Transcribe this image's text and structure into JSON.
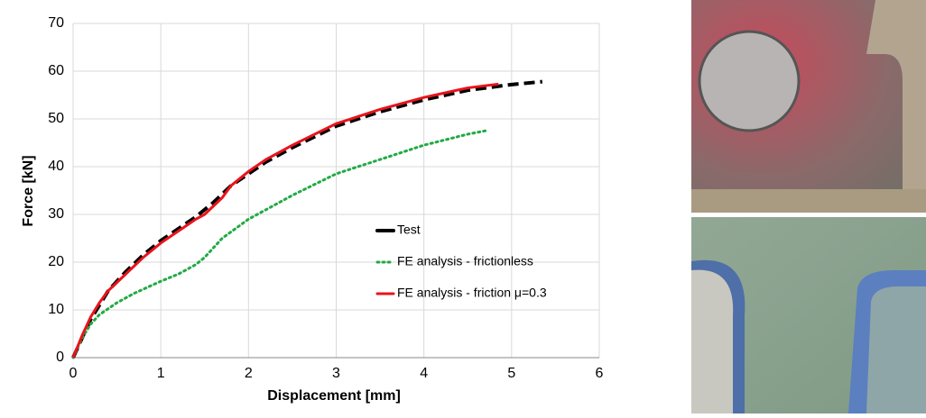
{
  "chart_data": {
    "type": "line",
    "xlabel": "Displacement [mm]",
    "ylabel": "Force [kN]",
    "xlim": [
      0,
      6
    ],
    "xticks": [
      0,
      1,
      2,
      3,
      4,
      5,
      6
    ],
    "ylim": [
      0,
      70
    ],
    "yticks": [
      0,
      10,
      20,
      30,
      40,
      50,
      60,
      70
    ],
    "grid": true,
    "legend": "center-right",
    "series": [
      {
        "name": "Test",
        "color": "#000000",
        "dash": "dashed",
        "x": [
          0,
          0.1,
          0.2,
          0.3,
          0.4,
          0.6,
          0.8,
          1,
          1.2,
          1.4,
          1.6,
          1.8,
          2,
          2.2,
          2.5,
          3,
          3.5,
          4,
          4.5,
          5,
          5.35
        ],
        "values": [
          0,
          4,
          8,
          11,
          14,
          18,
          21.5,
          24.5,
          27,
          29.5,
          32.5,
          36,
          38.5,
          41,
          44,
          48.5,
          51.5,
          54,
          56,
          57.2,
          57.8
        ]
      },
      {
        "name": "FE analysis - frictionless",
        "color": "#22aa44",
        "dash": "dotted",
        "x": [
          0,
          0.1,
          0.2,
          0.3,
          0.5,
          0.7,
          1,
          1.2,
          1.4,
          1.5,
          1.7,
          2,
          2.5,
          3,
          3.5,
          4,
          4.5,
          4.7
        ],
        "values": [
          0,
          4,
          7,
          9,
          11.5,
          13.5,
          16,
          17.5,
          19.5,
          21,
          25,
          29,
          34,
          38.5,
          41.5,
          44.5,
          46.8,
          47.5
        ]
      },
      {
        "name": "FE analysis - friction μ=0.3",
        "color": "#e8141c",
        "dash": "solid",
        "x": [
          0,
          0.1,
          0.2,
          0.3,
          0.4,
          0.6,
          0.8,
          1,
          1.2,
          1.4,
          1.5,
          1.7,
          1.8,
          2,
          2.2,
          2.5,
          3,
          3.5,
          4,
          4.5,
          4.85
        ],
        "values": [
          0,
          4.5,
          8.5,
          11.5,
          14,
          17.5,
          21,
          24,
          26.5,
          29,
          30,
          33.5,
          36,
          39,
          41.5,
          44.5,
          49,
          52,
          54.5,
          56.5,
          57.3
        ]
      }
    ]
  }
}
